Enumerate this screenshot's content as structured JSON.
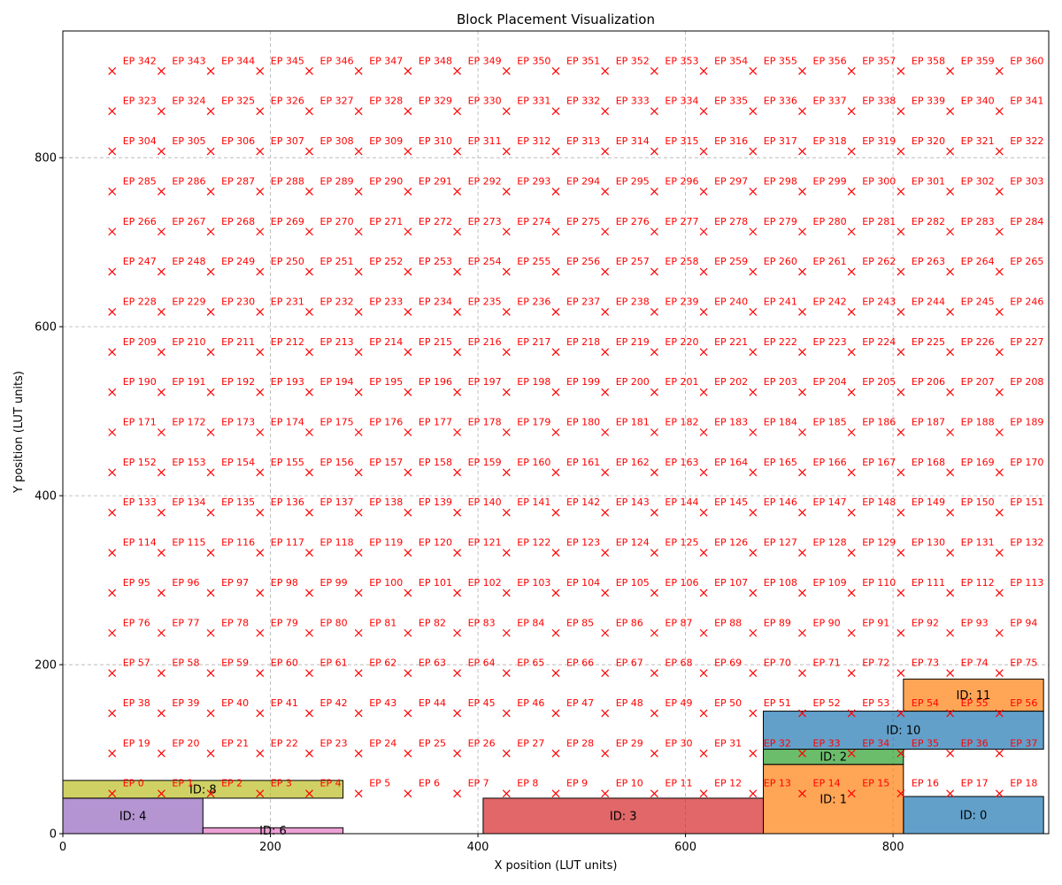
{
  "chart_data": {
    "type": "scatter",
    "title": "Block Placement Visualization",
    "xlabel": "X position (LUT units)",
    "ylabel": "Y position (LUT units)",
    "xlim": [
      0,
      950
    ],
    "ylim": [
      0,
      950
    ],
    "xticks": [
      0,
      200,
      400,
      600,
      800
    ],
    "yticks": [
      0,
      200,
      400,
      600,
      800
    ],
    "grid": true,
    "grid_style": "dashed",
    "ep_marker": "x",
    "ep_color": "#ff0000",
    "ep_label_prefix": "EP ",
    "ep_grid": {
      "x_values": [
        47.5,
        95,
        142.5,
        190,
        237.5,
        285,
        332.5,
        380,
        427.5,
        475,
        522.5,
        570,
        617.5,
        665,
        712.5,
        760,
        807.5,
        855,
        902.5
      ],
      "y_values": [
        47.5,
        95,
        142.5,
        190,
        237.5,
        285,
        332.5,
        380,
        427.5,
        475,
        522.5,
        570,
        617.5,
        665,
        712.5,
        760,
        807.5,
        855,
        902.5
      ],
      "index_order": "row-major from bottom-left",
      "first_index": 0,
      "last_index": 360
    },
    "blocks": [
      {
        "label": "ID: 0",
        "x": 810,
        "y": 0,
        "w": 135,
        "h": 44,
        "color": "#1f77b4"
      },
      {
        "label": "ID: 1",
        "x": 675,
        "y": 0,
        "w": 135,
        "h": 82,
        "color": "#ff7f0e"
      },
      {
        "label": "ID: 2",
        "x": 675,
        "y": 82,
        "w": 135,
        "h": 18,
        "color": "#2ca02c"
      },
      {
        "label": "ID: 3",
        "x": 405,
        "y": 0,
        "w": 270,
        "h": 42,
        "color": "#d62728"
      },
      {
        "label": "ID: 4",
        "x": 0,
        "y": 0,
        "w": 135,
        "h": 42,
        "color": "#9467bd"
      },
      {
        "label": "ID: 6",
        "x": 135,
        "y": 0,
        "w": 135,
        "h": 7,
        "color": "#e377c2"
      },
      {
        "label": "ID: 8",
        "x": 0,
        "y": 42,
        "w": 270,
        "h": 21,
        "color": "#bcbd22"
      },
      {
        "label": "ID: 10",
        "x": 675,
        "y": 100,
        "w": 270,
        "h": 45,
        "color": "#1f77b4"
      },
      {
        "label": "ID: 11",
        "x": 810,
        "y": 145,
        "w": 135,
        "h": 38,
        "color": "#ff7f0e"
      }
    ]
  }
}
